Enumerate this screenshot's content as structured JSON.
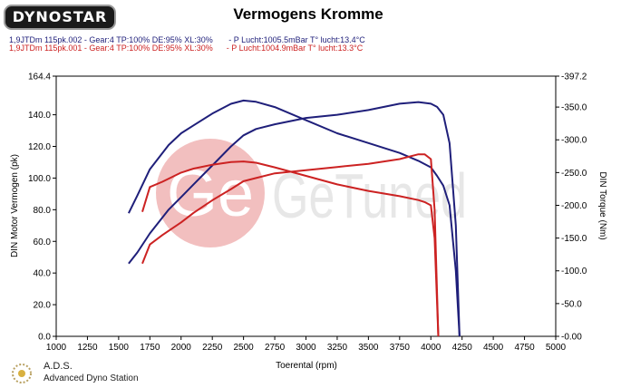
{
  "brand": {
    "logo_text": "DYNOSTAR"
  },
  "header": {
    "title": "Vermogens Kromme",
    "runs": [
      {
        "label": "1,9JTDm 115pk.002 - Gear:4 TP:100% DE:95% XL:30%       - P Lucht:1005.5mBar T° lucht:13.4°C",
        "color": "#1f1f7a"
      },
      {
        "label": "1,9JTDm 115pk.001 - Gear:4 TP:100% DE:95% XL:30%      - P Lucht:1004.9mBar T° lucht:13.3°C",
        "color": "#cc2222"
      }
    ]
  },
  "watermark": {
    "text": "GeTuned",
    "circle_text": "Ge"
  },
  "footer": {
    "brand": "A.D.S.",
    "subtitle": "Advanced Dyno Station"
  },
  "chart_data": {
    "type": "line",
    "title": "Vermogens Kromme",
    "xlabel": "Toerental (rpm)",
    "ylabel": "DIN Motor Vermogen (pk)",
    "y2label": "DIN Torque (Nm)",
    "xlim": [
      1000,
      5000
    ],
    "ylim": [
      0,
      164.4
    ],
    "y2lim": [
      0,
      397.2
    ],
    "x_ticks": [
      "1000",
      "1250",
      "1500",
      "1750",
      "2000",
      "2250",
      "2500",
      "2750",
      "3000",
      "3250",
      "3500",
      "3750",
      "4000",
      "4250",
      "4500",
      "4750",
      "5000"
    ],
    "y_ticks": [
      "0.0",
      "20.0",
      "40.0",
      "60.0",
      "80.0",
      "100.0",
      "120.0",
      "140.0",
      "164.4"
    ],
    "y2_ticks": [
      "-0.00",
      "-50.0",
      "-100.0",
      "-150.0",
      "-200.0",
      "-250.0",
      "-300.0",
      "-350.0",
      "-397.2"
    ],
    "grid": false,
    "series": [
      {
        "name": "1,9JTDm 115pk.002",
        "quantity": "power",
        "axis": "left",
        "color": "#1f1f7a",
        "x": [
          1580,
          1650,
          1750,
          1900,
          2000,
          2100,
          2250,
          2400,
          2500,
          2600,
          2750,
          3000,
          3250,
          3500,
          3750,
          3900,
          4000,
          4050,
          4100,
          4150,
          4200,
          4230
        ],
        "y": [
          46,
          53,
          65,
          80,
          88,
          96,
          108,
          120,
          127,
          131,
          134,
          138,
          140,
          143,
          147,
          148,
          147,
          145,
          140,
          122,
          70,
          0
        ]
      },
      {
        "name": "1,9JTDm 115pk.002",
        "quantity": "torque",
        "axis": "right",
        "color": "#1f1f7a",
        "x": [
          1580,
          1650,
          1750,
          1900,
          2000,
          2100,
          2250,
          2400,
          2500,
          2600,
          2750,
          3000,
          3250,
          3500,
          3750,
          3900,
          4000,
          4050,
          4100,
          4150,
          4200,
          4230
        ],
        "y": [
          188,
          215,
          255,
          292,
          310,
          322,
          340,
          355,
          360,
          358,
          350,
          330,
          310,
          295,
          280,
          268,
          258,
          245,
          230,
          200,
          100,
          0
        ]
      },
      {
        "name": "1,9JTDm 115pk.001",
        "quantity": "power",
        "axis": "left",
        "color": "#cc2222",
        "x": [
          1690,
          1750,
          1850,
          2000,
          2100,
          2250,
          2400,
          2500,
          2600,
          2750,
          3000,
          3250,
          3500,
          3750,
          3900,
          3950,
          4000,
          4030,
          4060
        ],
        "y": [
          46,
          58,
          64,
          72,
          78,
          86,
          93,
          98,
          100,
          103,
          105,
          107,
          109,
          112,
          115,
          115,
          112,
          80,
          0
        ]
      },
      {
        "name": "1,9JTDm 115pk.001",
        "quantity": "torque",
        "axis": "right",
        "color": "#cc2222",
        "x": [
          1690,
          1750,
          1850,
          2000,
          2100,
          2250,
          2400,
          2500,
          2600,
          2750,
          3000,
          3250,
          3500,
          3750,
          3900,
          3950,
          4000,
          4030,
          4060
        ],
        "y": [
          190,
          228,
          236,
          250,
          256,
          262,
          266,
          267,
          265,
          258,
          245,
          232,
          222,
          214,
          208,
          205,
          200,
          150,
          0
        ]
      }
    ]
  }
}
